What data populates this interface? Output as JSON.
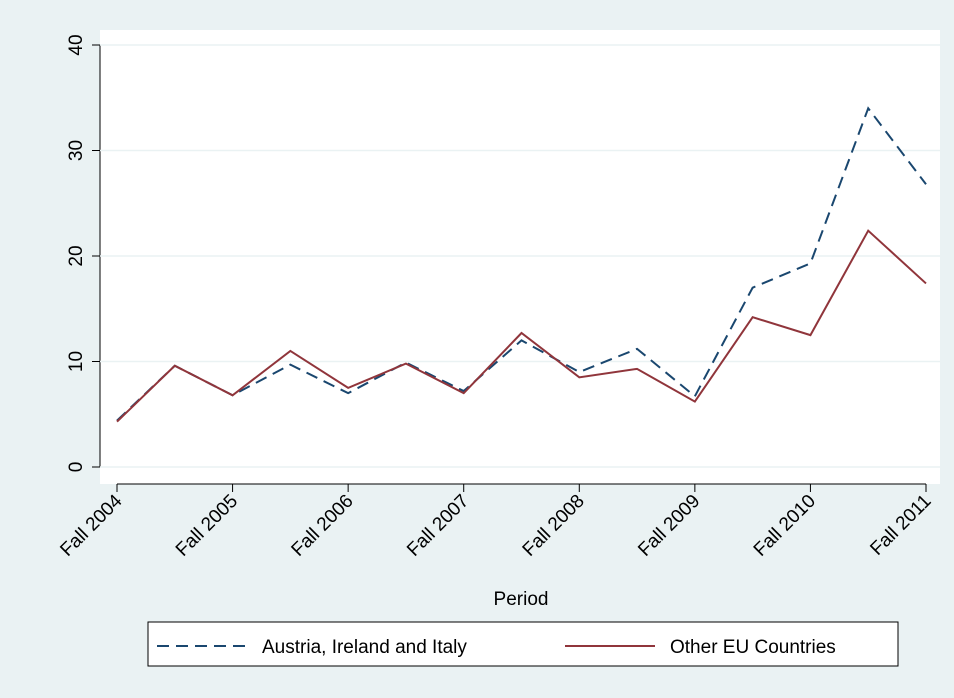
{
  "chart_data": {
    "type": "line",
    "x_label": "Period",
    "categories": [
      "Fall 2004",
      null,
      "Fall 2005",
      null,
      "Fall 2006",
      null,
      "Fall 2007",
      null,
      "Fall 2008",
      null,
      "Fall 2009",
      null,
      "Fall 2010",
      null,
      "Fall 2011"
    ],
    "series": [
      {
        "name": "Austria, Ireland and Italy",
        "color": "#1a476f",
        "dash": true,
        "values": [
          4.4,
          9.6,
          6.8,
          9.7,
          7.0,
          9.9,
          7.2,
          12.0,
          9.0,
          11.2,
          6.7,
          17.0,
          19.3,
          34.0,
          26.8
        ]
      },
      {
        "name": "Other EU Countries",
        "color": "#90353b",
        "dash": false,
        "values": [
          4.3,
          9.6,
          6.8,
          11.0,
          7.5,
          9.8,
          7.0,
          12.7,
          8.5,
          9.3,
          6.2,
          14.2,
          12.5,
          22.4,
          17.4
        ]
      }
    ],
    "ylim": [
      0,
      40
    ],
    "yticks": [
      0,
      10,
      20,
      30,
      40
    ],
    "grid": true
  }
}
